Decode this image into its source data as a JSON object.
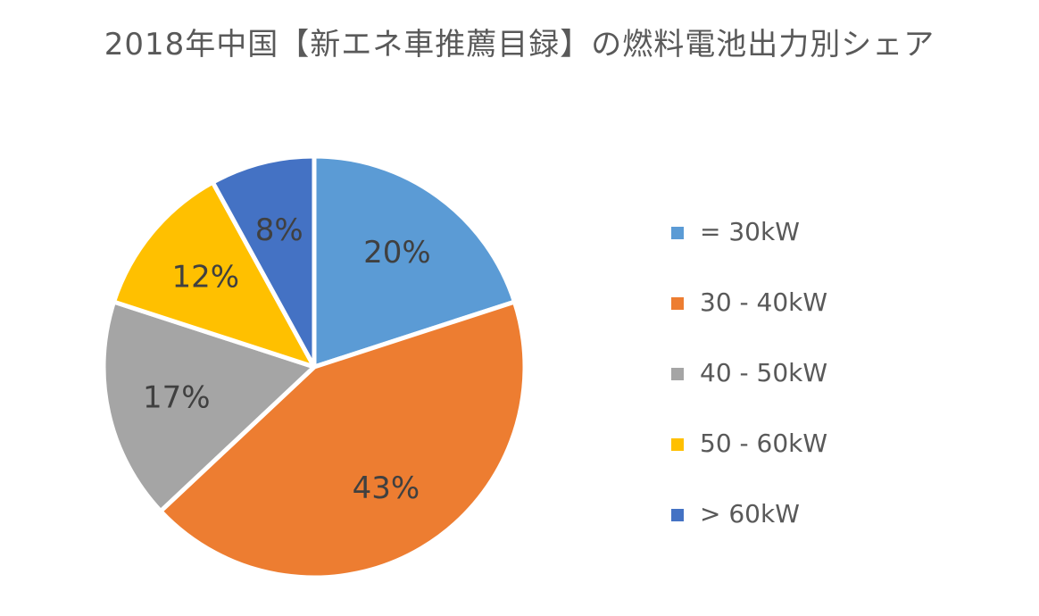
{
  "chart_data": {
    "type": "pie",
    "title": "2018年中国【新エネ車推薦目録】の燃料電池出力別シェア",
    "categories": [
      "= 30kW",
      "30 - 40kW",
      "40 - 50kW",
      "50 - 60kW",
      "> 60kW"
    ],
    "values": [
      20,
      43,
      17,
      12,
      8
    ],
    "value_labels": [
      "20%",
      "43%",
      "17%",
      "12%",
      "8%"
    ],
    "colors": [
      "#5B9BD5",
      "#ED7D31",
      "#A5A5A5",
      "#FFC000",
      "#4472C4"
    ],
    "legend_position": "right",
    "start_angle": "12 o'clock",
    "direction": "clockwise"
  }
}
